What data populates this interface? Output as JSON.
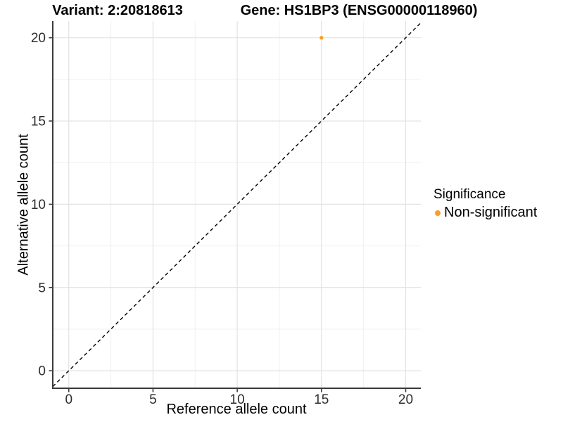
{
  "chart_data": {
    "type": "scatter",
    "titles": {
      "left": "Variant: 2:20818613",
      "right": "Gene: HS1BP3 (ENSG00000118960)"
    },
    "xlabel": "Reference allele count",
    "ylabel": "Alternative allele count",
    "xlim": [
      -0.95,
      20.9
    ],
    "ylim": [
      -1.05,
      21.0
    ],
    "xticks": [
      0,
      5,
      10,
      15,
      20
    ],
    "yticks": [
      0,
      5,
      10,
      15,
      20
    ],
    "grid": "major+minor",
    "points": [
      {
        "x": 15,
        "y": 20,
        "series": "Non-significant"
      }
    ],
    "identity_line": {
      "slope": 1,
      "intercept": 0,
      "style": "dashed",
      "color": "#000000"
    },
    "legend": {
      "title": "Significance",
      "position": "right",
      "items": [
        {
          "label": "Non-significant",
          "color": "#FB9E25",
          "marker": "circle"
        }
      ]
    },
    "colors": {
      "point": "#FB9E25",
      "grid_major": "#e2e2e2",
      "grid_minor": "#f0f0f0",
      "axis_line": "#3a3a3a",
      "tick_label": "#2e2e2e",
      "dashed_line": "#000000",
      "background": "#ffffff"
    }
  }
}
